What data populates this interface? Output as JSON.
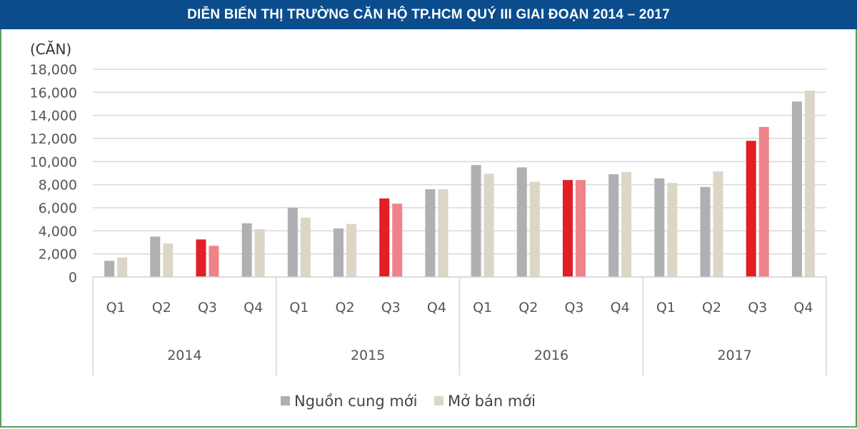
{
  "header": {
    "title": "DIỄN BIẾN THỊ TRƯỜNG CĂN HỘ TP.HCM QUÝ III GIAI ĐOẠN 2014 – 2017"
  },
  "chart_data": {
    "type": "bar",
    "title": "DIỄN BIẾN THỊ TRƯỜNG CĂN HỘ TP.HCM QUÝ III GIAI ĐOẠN 2014 – 2017",
    "ylabel": "(CĂN)",
    "xlabel": "",
    "ylim": [
      0,
      18000
    ],
    "yticks": [
      0,
      2000,
      4000,
      6000,
      8000,
      10000,
      12000,
      14000,
      16000,
      18000
    ],
    "ytick_labels": [
      "0",
      "2,000",
      "4,000",
      "6,000",
      "8,000",
      "10,000",
      "12,000",
      "14,000",
      "16,000",
      "18,000"
    ],
    "grid": true,
    "groups": [
      "2014",
      "2015",
      "2016",
      "2017"
    ],
    "categories": [
      "Q1",
      "Q2",
      "Q3",
      "Q4",
      "Q1",
      "Q2",
      "Q3",
      "Q4",
      "Q1",
      "Q2",
      "Q3",
      "Q4",
      "Q1",
      "Q2",
      "Q3",
      "Q4"
    ],
    "highlight_category": "Q3",
    "series": [
      {
        "name": "Nguồn cung mới",
        "color": "#b0b0b2",
        "highlight_color": "#e31e24",
        "values": [
          1400,
          3500,
          3250,
          4650,
          6000,
          4200,
          6800,
          7600,
          9700,
          9500,
          8400,
          8900,
          8550,
          7800,
          11800,
          15200
        ]
      },
      {
        "name": "Mở bán mới",
        "color": "#dcd6c7",
        "highlight_color": "#ef838a",
        "values": [
          1700,
          2900,
          2700,
          4150,
          5150,
          4600,
          6350,
          7600,
          8950,
          8250,
          8400,
          9100,
          8150,
          9150,
          13000,
          16150
        ]
      }
    ],
    "legend_position": "bottom-center"
  }
}
